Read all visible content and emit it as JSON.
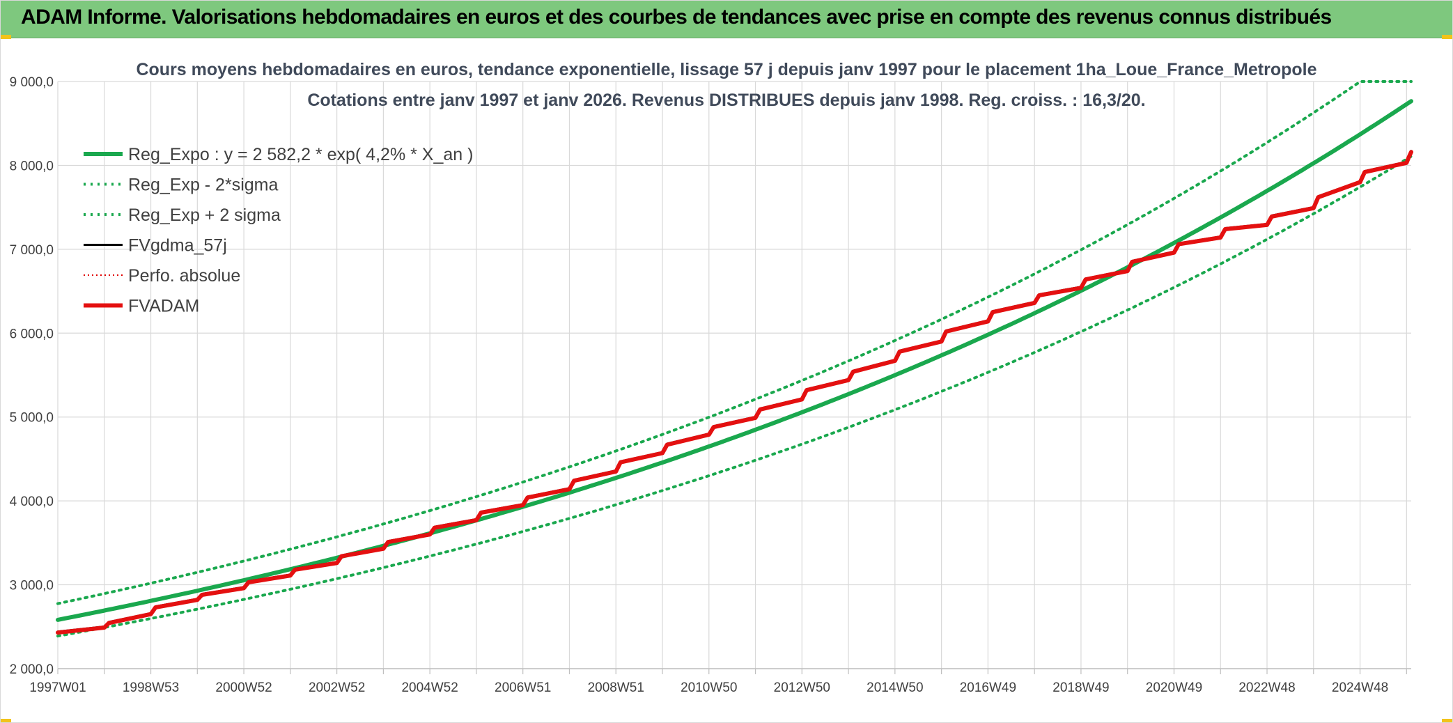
{
  "header": {
    "title": "ADAM Informe. Valorisations hebdomadaires en euros et des courbes de tendances avec prise en compte des revenus connus distribués"
  },
  "colors": {
    "header_bg": "#7ec87e",
    "reg_expo": "#1aa84e",
    "band": "#1aa84e",
    "fvgdma": "#000000",
    "perfo": "#e00000",
    "fvadam": "#e41010",
    "grid": "#d9d9d9"
  },
  "chart_data": {
    "type": "line",
    "title": [
      "Cours moyens hebdomadaires en euros, tendance exponentielle, lissage 57 j depuis janv 1997 pour le placement 1ha_Loue_France_Metropole",
      "Cotations entre janv 1997 et janv 2026. Revenus DISTRIBUES depuis janv 1998. Reg. croiss. : 16,3/20."
    ],
    "xlabel": "",
    "ylabel": "",
    "ylim": [
      2000,
      9000
    ],
    "xlim": [
      1997.0,
      2026.1
    ],
    "grid": true,
    "legend_position": "top-left",
    "y_ticks": [
      {
        "value": 2000,
        "label": "2 000,0"
      },
      {
        "value": 3000,
        "label": "3 000,0"
      },
      {
        "value": 4000,
        "label": "4 000,0"
      },
      {
        "value": 5000,
        "label": "5 000,0"
      },
      {
        "value": 6000,
        "label": "6 000,0"
      },
      {
        "value": 7000,
        "label": "7 000,0"
      },
      {
        "value": 8000,
        "label": "8 000,0"
      },
      {
        "value": 9000,
        "label": "9 000,0"
      }
    ],
    "x_ticks": [
      {
        "year": 1997.0,
        "label": "1997W01"
      },
      {
        "year": 1999.0,
        "label": "1998W53"
      },
      {
        "year": 2001.0,
        "label": "2000W52"
      },
      {
        "year": 2003.0,
        "label": "2002W52"
      },
      {
        "year": 2005.0,
        "label": "2004W52"
      },
      {
        "year": 2007.0,
        "label": "2006W51"
      },
      {
        "year": 2009.0,
        "label": "2008W51"
      },
      {
        "year": 2011.0,
        "label": "2010W50"
      },
      {
        "year": 2013.0,
        "label": "2012W50"
      },
      {
        "year": 2015.0,
        "label": "2014W50"
      },
      {
        "year": 2017.0,
        "label": "2016W49"
      },
      {
        "year": 2019.0,
        "label": "2018W49"
      },
      {
        "year": 2021.0,
        "label": "2020W49"
      },
      {
        "year": 2023.0,
        "label": "2022W48"
      },
      {
        "year": 2025.0,
        "label": "2024W48"
      }
    ],
    "regression": {
      "a": 2582.2,
      "rate": 0.042,
      "x0": 1997.0,
      "sigma_factor": 0.075,
      "cap": 9000
    },
    "series": [
      {
        "name": "Reg_Expo : y = 2 582,2 * exp( 4,2% *  X_an )",
        "style": "thick-solid",
        "color": "#1aa84e",
        "kind": "reg"
      },
      {
        "name": "Reg_Exp - 2*sigma",
        "style": "dotted",
        "color": "#1aa84e",
        "kind": "lower"
      },
      {
        "name": "Reg_Exp + 2 sigma",
        "style": "dotted",
        "color": "#1aa84e",
        "kind": "upper"
      },
      {
        "name": "FVgdma_57j",
        "style": "solid",
        "color": "#000000",
        "kind": "fvgdma"
      },
      {
        "name": "Perfo. absolue",
        "style": "dotted-thin",
        "color": "#e00000",
        "kind": "perfo"
      },
      {
        "name": "FVADAM",
        "style": "thick-solid",
        "color": "#e41010",
        "kind": "fvadam",
        "points": [
          [
            1997.0,
            2430
          ],
          [
            1998.0,
            2490
          ],
          [
            1998.1,
            2545
          ],
          [
            1999.0,
            2650
          ],
          [
            1999.1,
            2730
          ],
          [
            2000.0,
            2820
          ],
          [
            2000.1,
            2880
          ],
          [
            2001.0,
            2960
          ],
          [
            2001.1,
            3030
          ],
          [
            2002.0,
            3110
          ],
          [
            2002.1,
            3180
          ],
          [
            2003.0,
            3260
          ],
          [
            2003.1,
            3340
          ],
          [
            2004.0,
            3430
          ],
          [
            2004.1,
            3510
          ],
          [
            2005.0,
            3600
          ],
          [
            2005.1,
            3680
          ],
          [
            2006.0,
            3770
          ],
          [
            2006.1,
            3860
          ],
          [
            2007.0,
            3950
          ],
          [
            2007.1,
            4040
          ],
          [
            2008.0,
            4140
          ],
          [
            2008.1,
            4240
          ],
          [
            2009.0,
            4350
          ],
          [
            2009.1,
            4460
          ],
          [
            2010.0,
            4570
          ],
          [
            2010.1,
            4670
          ],
          [
            2011.0,
            4790
          ],
          [
            2011.1,
            4880
          ],
          [
            2012.0,
            4990
          ],
          [
            2012.1,
            5090
          ],
          [
            2013.0,
            5210
          ],
          [
            2013.1,
            5320
          ],
          [
            2014.0,
            5440
          ],
          [
            2014.1,
            5540
          ],
          [
            2015.0,
            5670
          ],
          [
            2015.1,
            5780
          ],
          [
            2016.0,
            5900
          ],
          [
            2016.1,
            6020
          ],
          [
            2017.0,
            6140
          ],
          [
            2017.1,
            6250
          ],
          [
            2018.0,
            6360
          ],
          [
            2018.1,
            6450
          ],
          [
            2019.0,
            6540
          ],
          [
            2019.1,
            6640
          ],
          [
            2020.0,
            6740
          ],
          [
            2020.1,
            6850
          ],
          [
            2021.0,
            6960
          ],
          [
            2021.1,
            7060
          ],
          [
            2022.0,
            7140
          ],
          [
            2022.1,
            7240
          ],
          [
            2023.0,
            7290
          ],
          [
            2023.1,
            7390
          ],
          [
            2024.0,
            7490
          ],
          [
            2024.1,
            7620
          ],
          [
            2025.0,
            7800
          ],
          [
            2025.1,
            7920
          ],
          [
            2026.0,
            8030
          ],
          [
            2026.05,
            8100
          ],
          [
            2026.1,
            8160
          ]
        ]
      }
    ]
  }
}
